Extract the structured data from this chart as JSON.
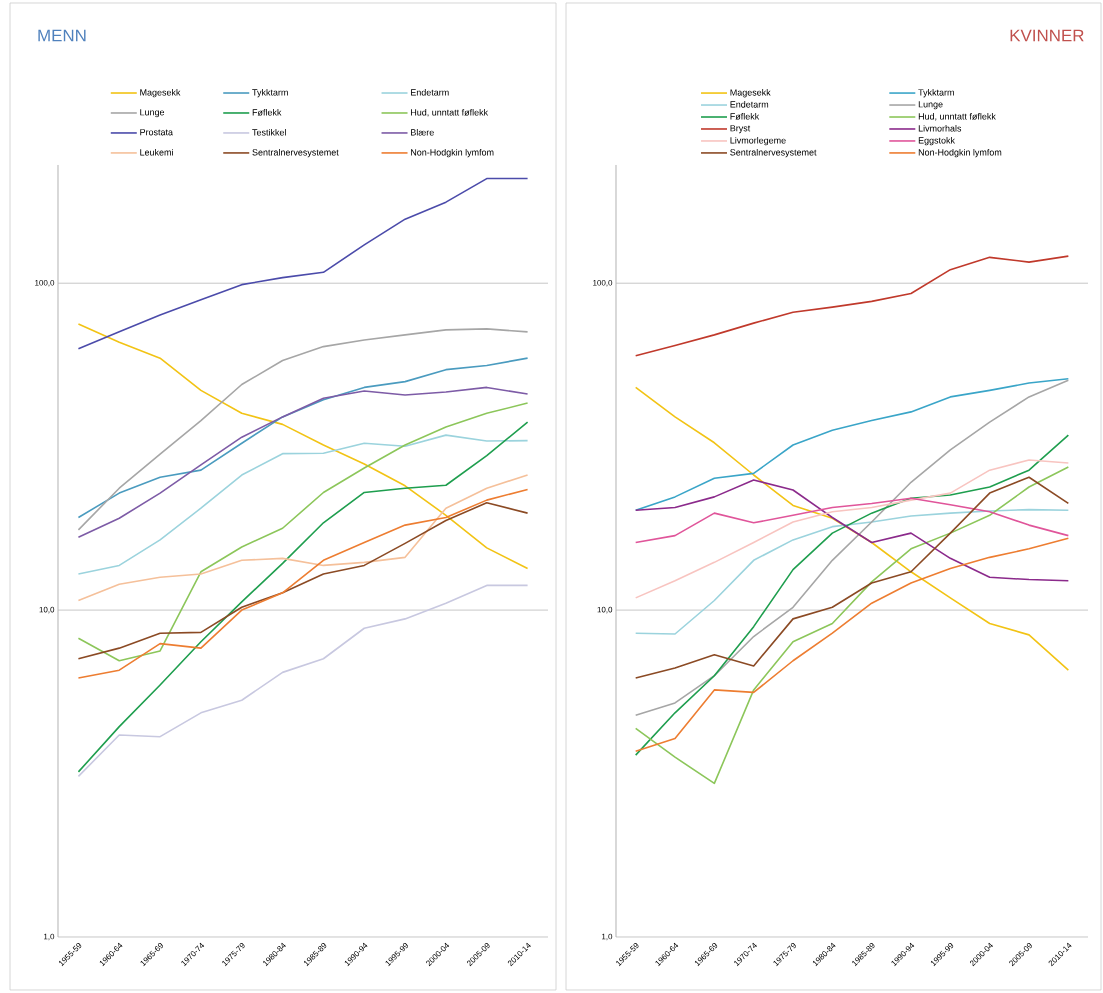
{
  "chart_data": [
    {
      "type": "line",
      "title": "MENN",
      "log": true,
      "grid": "y",
      "legend": "top",
      "categories": [
        "1955-59",
        "1960-64",
        "1965-69",
        "1970-74",
        "1975-79",
        "1980-84",
        "1985-89",
        "1990-94",
        "1995-99",
        "2000-04",
        "2005-09",
        "2010-14"
      ],
      "ylim": [
        1,
        230
      ],
      "yticks": [
        {
          "value": 1,
          "label": "1,0"
        },
        {
          "value": 10,
          "label": "10,0"
        },
        {
          "value": 100,
          "label": "100,0"
        }
      ],
      "series": [
        {
          "name": "Magesekk",
          "color": "#f2c314",
          "values": [
            75,
            66,
            59,
            47,
            40,
            37,
            32,
            28,
            24,
            19.5,
            15.5,
            13.4
          ]
        },
        {
          "name": "Tykktarm",
          "color": "#4a9bbf",
          "values": [
            19.2,
            22.8,
            25.5,
            26.8,
            32.4,
            39,
            44,
            48,
            50,
            54.4,
            56,
            59
          ]
        },
        {
          "name": "Endetarm",
          "color": "#9bd3dd",
          "values": [
            12.9,
            13.7,
            16.4,
            20.5,
            25.9,
            30.1,
            30.2,
            32.4,
            31.7,
            34.3,
            32.9,
            33
          ]
        },
        {
          "name": "Lunge",
          "color": "#a6a6a6",
          "values": [
            17.6,
            23.6,
            30,
            38,
            49,
            58,
            64,
            67,
            69.5,
            72,
            72.5,
            71
          ]
        },
        {
          "name": "Føflekk",
          "color": "#1e9e4e",
          "values": [
            3.2,
            4.4,
            5.9,
            8.0,
            10.6,
            13.9,
            18.5,
            22.9,
            23.6,
            24.1,
            29.7,
            37.6
          ]
        },
        {
          "name": "Hud, unntatt føflekk",
          "color": "#8cc65a",
          "values": [
            8.2,
            7.0,
            7.5,
            13.1,
            15.6,
            17.8,
            22.9,
            27.2,
            32,
            36.3,
            40,
            43
          ]
        },
        {
          "name": "Prostata",
          "color": "#4b4baa",
          "values": [
            63,
            71,
            80,
            89,
            99,
            104,
            108,
            131,
            157,
            177,
            209,
            209
          ]
        },
        {
          "name": "Testikkel",
          "color": "#c8c8e0",
          "values": [
            3.1,
            4.15,
            4.1,
            4.85,
            5.3,
            6.45,
            7.1,
            8.8,
            9.4,
            10.5,
            11.9,
            11.9
          ]
        },
        {
          "name": "Blære",
          "color": "#7d5ba6",
          "values": [
            16.7,
            19.1,
            22.8,
            27.8,
            33.8,
            39,
            44.5,
            46.8,
            45.5,
            46.5,
            48,
            45.8
          ]
        },
        {
          "name": "Leukemi",
          "color": "#f5c09a",
          "values": [
            10.7,
            12,
            12.6,
            12.9,
            14.2,
            14.4,
            13.7,
            14,
            14.5,
            20.5,
            23.6,
            25.9
          ]
        },
        {
          "name": "Sentralnervesystemet",
          "color": "#8b4a24",
          "values": [
            7.1,
            7.65,
            8.5,
            8.55,
            10.2,
            11.3,
            12.9,
            13.7,
            16,
            18.8,
            21.3,
            19.8
          ]
        },
        {
          "name": "Non-Hodgkin lymfom",
          "color": "#ed7d31",
          "values": [
            6.2,
            6.55,
            7.9,
            7.65,
            10,
            11.3,
            14.2,
            16.1,
            18.2,
            19.2,
            21.7,
            23.4
          ]
        }
      ]
    },
    {
      "type": "line",
      "title": "KVINNER",
      "log": true,
      "grid": "y",
      "legend": "top",
      "categories": [
        "1955-59",
        "1960-64",
        "1965-69",
        "1970-74",
        "1975-79",
        "1980-84",
        "1985-89",
        "1990-94",
        "1995-99",
        "2000-04",
        "2005-09",
        "2010-14"
      ],
      "ylim": [
        1,
        230
      ],
      "yticks": [
        {
          "value": 1,
          "label": "1,0"
        },
        {
          "value": 10,
          "label": "10,0"
        },
        {
          "value": 100,
          "label": "100,0"
        }
      ],
      "series": [
        {
          "name": "Magesekk",
          "color": "#f2c314",
          "values": [
            48,
            39,
            32.5,
            25.9,
            20.9,
            19.1,
            16.1,
            13.1,
            10.9,
            9.1,
            8.4,
            6.55
          ]
        },
        {
          "name": "Tykktarm",
          "color": "#3aa5c8",
          "values": [
            20.2,
            22.2,
            25.3,
            26.2,
            32,
            35.5,
            38,
            40.4,
            44.9,
            47,
            49.5,
            51
          ]
        },
        {
          "name": "Endetarm",
          "color": "#9bd3dd",
          "values": [
            8.5,
            8.45,
            10.7,
            14.2,
            16.4,
            18,
            18.6,
            19.4,
            19.8,
            20.1,
            20.3,
            20.2
          ]
        },
        {
          "name": "Lunge",
          "color": "#a6a6a6",
          "values": [
            4.77,
            5.2,
            6.3,
            8.3,
            10.2,
            14.2,
            18.6,
            24.6,
            30.9,
            37.6,
            44.9,
            50.5
          ]
        },
        {
          "name": "Føflekk",
          "color": "#1e9e4e",
          "values": [
            3.6,
            4.85,
            6.3,
            8.9,
            13.3,
            17.2,
            19.8,
            22,
            22.5,
            23.8,
            26.8,
            34.3
          ]
        },
        {
          "name": "Hud, unntatt føflekk",
          "color": "#8cc65a",
          "values": [
            4.35,
            3.55,
            2.95,
            5.7,
            8,
            9.1,
            12.2,
            15.4,
            17.2,
            19.5,
            23.8,
            27.4
          ]
        },
        {
          "name": "Bryst",
          "color": "#c0392b",
          "values": [
            60,
            64.5,
            69.5,
            75.5,
            81.5,
            84.5,
            88,
            93,
            110,
            120,
            116,
            121
          ]
        },
        {
          "name": "Livmorhals",
          "color": "#8b2a8b",
          "values": [
            20.2,
            20.6,
            22.2,
            25,
            23.3,
            19.2,
            16.1,
            17.2,
            14.4,
            12.6,
            12.4,
            12.3
          ]
        },
        {
          "name": "Livmorlegeme",
          "color": "#f8c4c0",
          "values": [
            10.9,
            12.3,
            14,
            16.1,
            18.6,
            20,
            20.6,
            21.7,
            22.8,
            26.8,
            28.8,
            28.2
          ]
        },
        {
          "name": "Eggstokk",
          "color": "#e0559a",
          "values": [
            16.1,
            16.9,
            19.8,
            18.5,
            19.5,
            20.6,
            21.2,
            22,
            21,
            20,
            18.2,
            16.9
          ]
        },
        {
          "name": "Sentralnervesystemet",
          "color": "#8b4a24",
          "values": [
            6.2,
            6.65,
            7.3,
            6.75,
            9.4,
            10.2,
            12.1,
            13.1,
            17.2,
            22.8,
            25.5,
            21.2
          ]
        },
        {
          "name": "Non-Hodgkin lymfom",
          "color": "#ed7d31",
          "values": [
            3.7,
            4.05,
            5.7,
            5.6,
            7,
            8.5,
            10.5,
            12.1,
            13.4,
            14.5,
            15.4,
            16.6
          ]
        }
      ]
    }
  ]
}
